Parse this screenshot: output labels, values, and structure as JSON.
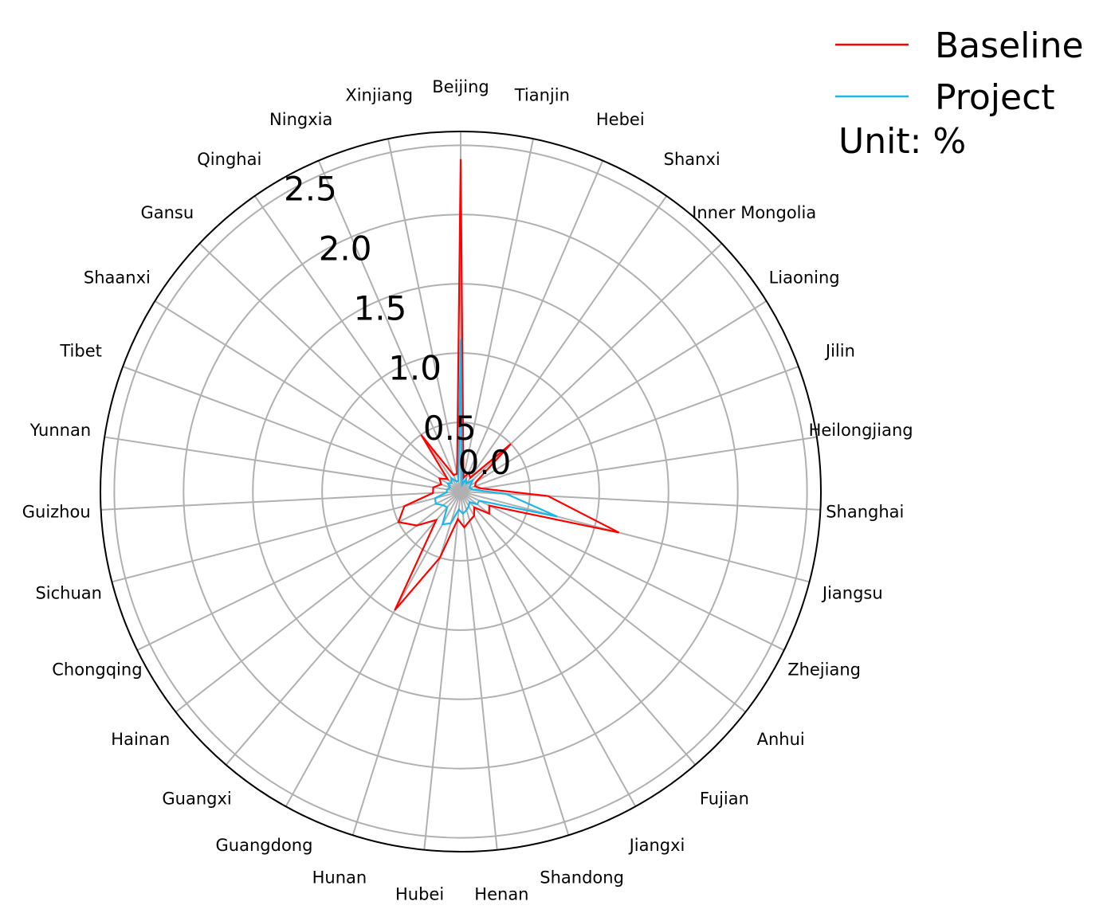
{
  "chart_data": {
    "type": "radar",
    "categories": [
      "Beijing",
      "Tianjin",
      "Hebei",
      "Shanxi",
      "Inner Mongolia",
      "Liaoning",
      "Jilin",
      "Heilongjiang",
      "Shanghai",
      "Jiangsu",
      "Zhejiang",
      "Anhui",
      "Fujian",
      "Jiangxi",
      "Shandong",
      "Henan",
      "Hubei",
      "Hunan",
      "Guangdong",
      "Guangxi",
      "Hainan",
      "Chongqing",
      "Sichuan",
      "Guizhou",
      "Yunnan",
      "Tibet",
      "Shaanxi",
      "Gansu",
      "Qinghai",
      "Ningxia",
      "Xinjiang"
    ],
    "series": [
      {
        "name": "Baseline",
        "color": "#ff0000",
        "values": [
          2.4,
          0.1,
          0.15,
          0.12,
          0.5,
          0.13,
          0.11,
          0.15,
          0.63,
          1.18,
          0.23,
          0.26,
          0.15,
          0.2,
          0.22,
          0.26,
          0.2,
          0.5,
          0.98,
          0.27,
          0.4,
          0.5,
          0.42,
          0.2,
          0.2,
          0.15,
          0.18,
          0.13,
          0.5,
          0.13,
          0.13
        ]
      },
      {
        "name": "Project",
        "color": "#1ab8ea",
        "values": [
          1.1,
          0.05,
          0.1,
          0.07,
          0.12,
          0.08,
          0.07,
          0.09,
          0.33,
          0.72,
          0.15,
          0.15,
          0.1,
          0.12,
          0.14,
          0.16,
          0.13,
          0.24,
          0.27,
          0.15,
          0.16,
          0.2,
          0.19,
          0.1,
          0.1,
          0.08,
          0.11,
          0.09,
          0.12,
          0.08,
          0.08
        ]
      }
    ],
    "rticks": [
      "0.0",
      "0.5",
      "1.0",
      "1.5",
      "2.0",
      "2.5"
    ],
    "rmax": 2.6,
    "grid": true,
    "legend_position": "top-right",
    "unit_note": "Unit: %"
  }
}
